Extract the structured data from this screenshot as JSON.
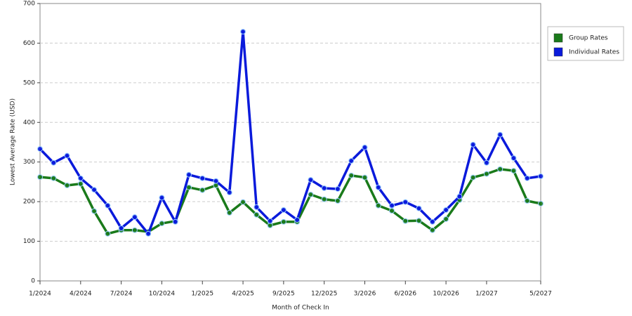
{
  "chart_data": {
    "type": "line",
    "x_label": "Month of Check In",
    "y_label": "Lowest Average Rate (USD)",
    "categories": [
      "1/2024",
      null,
      null,
      "4/2024",
      null,
      null,
      "7/2024",
      null,
      null,
      "10/2024",
      null,
      null,
      "1/2025",
      null,
      null,
      "4/2025",
      null,
      null,
      "9/2025",
      null,
      null,
      "12/2025",
      null,
      null,
      "3/2026",
      null,
      null,
      "6/2026",
      null,
      null,
      "10/2026",
      null,
      null,
      "1/2027",
      null,
      null,
      null,
      "5/2027"
    ],
    "series": [
      {
        "name": "Group Rates",
        "color": "#1a7a1a",
        "values": [
          262,
          259,
          241,
          245,
          176,
          119,
          128,
          128,
          124,
          145,
          151,
          236,
          229,
          241,
          172,
          199,
          167,
          140,
          149,
          149,
          218,
          206,
          202,
          266,
          261,
          190,
          177,
          151,
          152,
          128,
          156,
          204,
          261,
          270,
          282,
          278,
          202,
          195
        ]
      },
      {
        "name": "Individual Rates",
        "color": "#0a1adb",
        "values": [
          333,
          298,
          316,
          259,
          230,
          190,
          133,
          161,
          119,
          210,
          149,
          268,
          259,
          252,
          223,
          629,
          186,
          151,
          179,
          154,
          255,
          234,
          232,
          303,
          337,
          236,
          190,
          199,
          183,
          149,
          179,
          213,
          344,
          298,
          369,
          310,
          259,
          264
        ]
      }
    ],
    "ylim": [
      0,
      700
    ],
    "yticks": [
      0,
      100,
      200,
      300,
      400,
      500,
      600,
      700
    ],
    "grid": true,
    "legend": "right"
  }
}
